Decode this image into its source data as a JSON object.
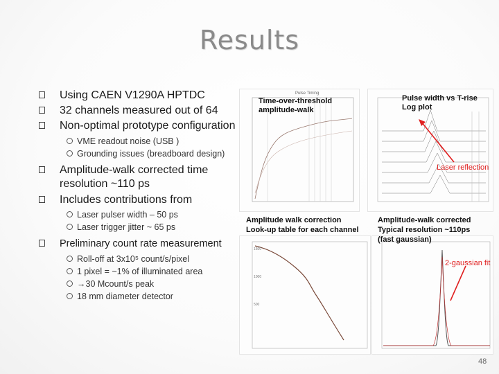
{
  "slide": {
    "title": "Results",
    "page_number": "48"
  },
  "bullets": [
    {
      "level": 1,
      "text": "Using CAEN V1290A HPTDC"
    },
    {
      "level": 1,
      "text": "32 channels measured out of 64"
    },
    {
      "level": 1,
      "text": "Non-optimal prototype configuration"
    },
    {
      "level": 2,
      "text": "VME readout noise (USB )"
    },
    {
      "level": 2,
      "text": "Grounding issues (breadboard design)"
    },
    {
      "level": 1,
      "text": "Amplitude-walk corrected time resolution ~110 ps"
    },
    {
      "level": 1,
      "text": "Includes contributions from"
    },
    {
      "level": 2,
      "text": "Laser pulser width – 50 ps"
    },
    {
      "level": 2,
      "text": "Laser trigger jitter ~ 65 ps"
    },
    {
      "level": 1,
      "text": "Preliminary count rate measurement"
    },
    {
      "level": 2,
      "text": "Roll-off at 3x10⁵ count/s/pixel"
    },
    {
      "level": 2,
      "text": "1 pixel = ~1% of illuminated area"
    },
    {
      "level": 2,
      "text": "→30 Mcount/s peak"
    },
    {
      "level": 2,
      "text": "18 mm diameter detector"
    }
  ],
  "figures": {
    "tot": {
      "caption": "Time-over-threshold amplitude-walk",
      "plot_title": "Pulse Timing"
    },
    "pulse_width": {
      "caption": "Pulse width vs T-rise Log plot",
      "annotation": "Laser reflection"
    },
    "walk_correction": {
      "caption_line1": "Amplitude walk correction",
      "caption_line2": "Look-up table for each channel"
    },
    "corrected": {
      "caption_line1": "Amplitude-walk corrected",
      "caption_line2": "Typical resolution ~110ps",
      "caption_line3": "(fast gaussian)",
      "annotation": "2-gaussian fit"
    }
  },
  "colors": {
    "title": "#8a8a8a",
    "annotation": "#e02020",
    "curve": "#7a4a3a"
  }
}
